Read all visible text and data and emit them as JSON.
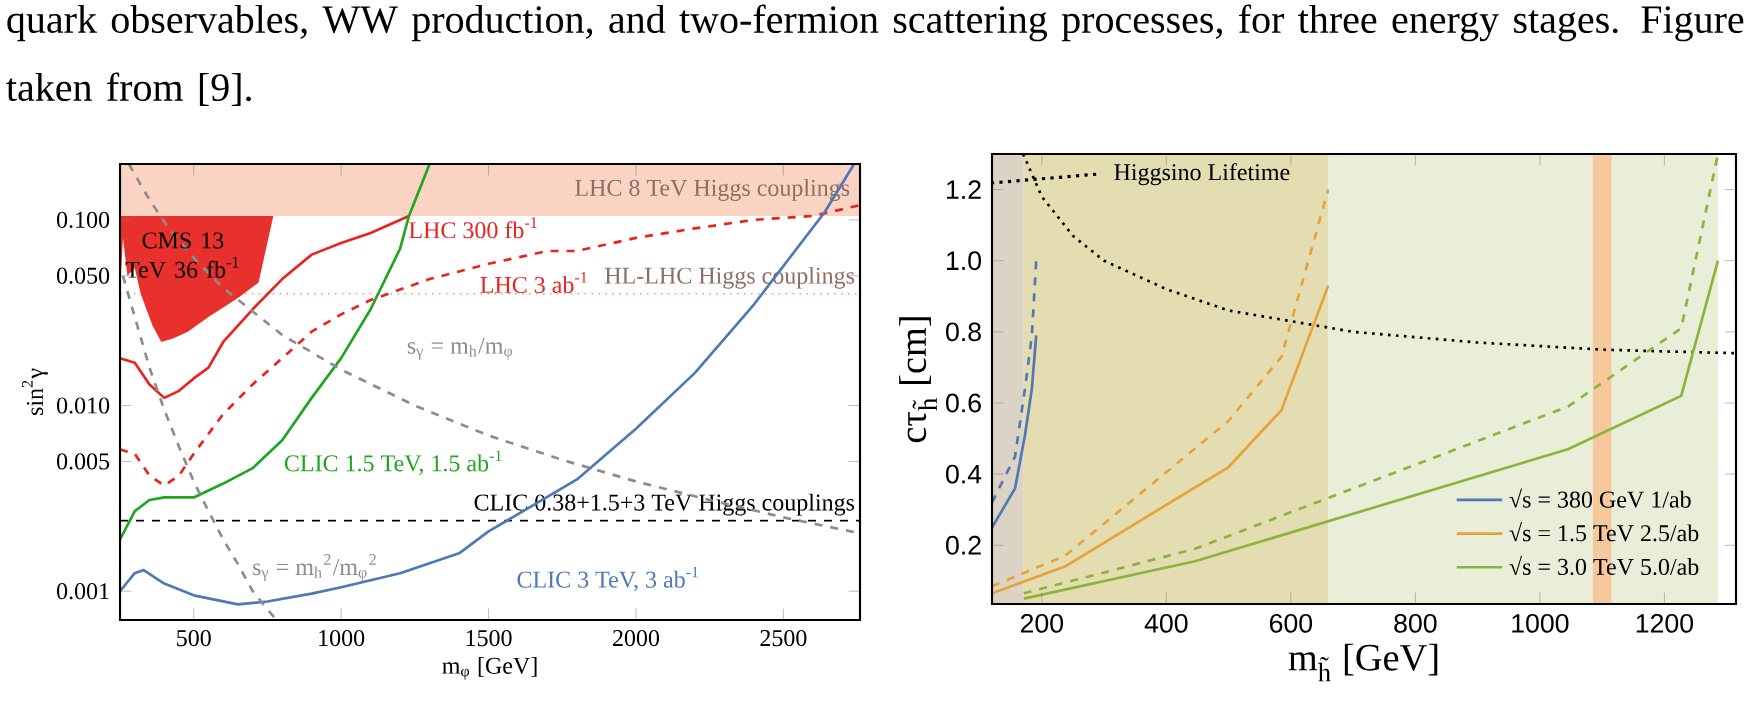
{
  "chart_data": [
    {
      "type": "line",
      "xlabel": "m$_{φ}$  [GeV]",
      "ylabel": "sin$^{2}$γ",
      "log": "y",
      "xlim": [
        250,
        2760
      ],
      "ylim": [
        0.0007,
        0.2
      ],
      "xticks": [
        500,
        1000,
        1500,
        2000,
        2500
      ],
      "yticks": [
        {
          "value": 0.001,
          "label": "0.001"
        },
        {
          "value": 0.005,
          "label": "0.005"
        },
        {
          "value": 0.01,
          "label": "0.010"
        },
        {
          "value": 0.05,
          "label": "0.050"
        },
        {
          "value": 0.1,
          "label": "0.100"
        }
      ],
      "annotations": [
        "quark observables, WW production, and two-fermion scattering processes, for three energy stages. Figure taken from [9]."
      ],
      "bands": [
        {
          "axis": "y",
          "from": 0.105,
          "to": 0.2,
          "label": "LHC 8 TeV Higgs couplings",
          "color": "#fbd3c3"
        }
      ],
      "ref_lines": [
        {
          "axis": "y",
          "value": 0.04,
          "label": "HL-LHC Higgs couplings",
          "color": "#f09a8a",
          "line_style": "dotted"
        },
        {
          "axis": "y",
          "value": 0.0024,
          "label": "CLIC 0.38+1.5+3 TeV Higgs couplings",
          "color": "#000000",
          "line_style": "dashed"
        }
      ],
      "series": [
        {
          "name": "LHC 300 fb$^{-1}$",
          "color": "#e8241c",
          "line_style": "solid",
          "x": [
            250,
            300,
            350,
            400,
            450,
            500,
            550,
            600,
            700,
            800,
            900,
            1000,
            1100,
            1230
          ],
          "values": [
            0.018,
            0.017,
            0.013,
            0.011,
            0.012,
            0.014,
            0.016,
            0.022,
            0.033,
            0.048,
            0.065,
            0.075,
            0.085,
            0.105
          ]
        },
        {
          "name": "LHC 3 ab$^{-1}$",
          "color": "#e8241c",
          "line_style": "dashed",
          "x": [
            250,
            300,
            350,
            400,
            450,
            500,
            600,
            700,
            800,
            900,
            1000,
            1100,
            1300,
            1500,
            1700,
            1800,
            2000,
            2200,
            2400,
            2600,
            2760
          ],
          "values": [
            0.0058,
            0.0055,
            0.0042,
            0.0037,
            0.0042,
            0.0055,
            0.009,
            0.013,
            0.018,
            0.025,
            0.031,
            0.037,
            0.048,
            0.058,
            0.068,
            0.068,
            0.08,
            0.09,
            0.1,
            0.105,
            0.12
          ]
        },
        {
          "name": "CLIC 1.5 TeV, 1.5 ab$^{-1}$",
          "color": "#1fa51f",
          "line_style": "solid",
          "x": [
            250,
            300,
            350,
            400,
            500,
            600,
            700,
            800,
            900,
            1000,
            1100,
            1200,
            1230,
            1300
          ],
          "values": [
            0.0019,
            0.0027,
            0.0031,
            0.0032,
            0.0032,
            0.0038,
            0.0046,
            0.0065,
            0.011,
            0.018,
            0.033,
            0.07,
            0.105,
            0.2
          ]
        },
        {
          "name": "CLIC 3 TeV, 3 ab$^{-1}$",
          "color": "#4f78b5",
          "line_style": "solid",
          "x": [
            250,
            300,
            330,
            400,
            500,
            650,
            750,
            900,
            1000,
            1200,
            1400,
            1500,
            1600,
            1800,
            2000,
            2200,
            2400,
            2640,
            2740
          ],
          "values": [
            0.001,
            0.00125,
            0.0013,
            0.0011,
            0.00095,
            0.00085,
            0.00088,
            0.00097,
            0.00105,
            0.00125,
            0.0016,
            0.0021,
            0.0026,
            0.004,
            0.0075,
            0.015,
            0.035,
            0.11,
            0.2
          ]
        },
        {
          "name": "s$_{γ}$ = m$_{h}$/m$_{φ}$",
          "color": "#8c8c8c",
          "line_style": "dashed",
          "x": [
            280,
            350,
            420,
            500,
            600,
            800,
            1000,
            1250,
            1500,
            1750,
            2000,
            2250,
            2500,
            2760
          ],
          "values": [
            0.2,
            0.128,
            0.088,
            0.0625,
            0.043,
            0.024,
            0.0156,
            0.01,
            0.0069,
            0.0051,
            0.0039,
            0.0031,
            0.0025,
            0.00205
          ]
        },
        {
          "name": "s$_{γ}$ = m$_{h}$$^{2}$/m$_{φ}$$^{2}$",
          "color": "#8c8c8c",
          "line_style": "dashed",
          "x": [
            260,
            300,
            350,
            400,
            450,
            500,
            550,
            600,
            650,
            700,
            780
          ],
          "values": [
            0.05,
            0.03,
            0.016,
            0.0095,
            0.006,
            0.0039,
            0.0027,
            0.0019,
            0.0014,
            0.001,
            0.0007
          ]
        },
        {
          "name": "CMS 13 TeV 36 fb$^{-1}$",
          "type": "area",
          "color": "#e8312d",
          "x": [
            250,
            250,
            260,
            275,
            300,
            320,
            360,
            390,
            430,
            480,
            550,
            650,
            720,
            770
          ],
          "values": [
            0.105,
            0.04,
            0.08,
            0.05,
            0.055,
            0.04,
            0.027,
            0.022,
            0.023,
            0.025,
            0.03,
            0.038,
            0.046,
            0.105
          ]
        }
      ]
    },
    {
      "type": "line",
      "xlabel": "m$_{h̃}$ [GeV]",
      "ylabel": "cτ$_{h̃}$ [cm]",
      "xlim": [
        120,
        1315
      ],
      "ylim": [
        0.035,
        1.3
      ],
      "legend": "bottom right",
      "xticks": [
        200,
        400,
        600,
        800,
        1000,
        1200
      ],
      "yticks": [
        0.2,
        0.4,
        0.6,
        0.8,
        {
          "value": 1,
          "label": "1.0"
        },
        1.2
      ],
      "bands": [
        {
          "axis": "x",
          "from": 120,
          "to": 171,
          "color": "#dcd3c4"
        },
        {
          "axis": "x",
          "from": 171,
          "to": 660,
          "color": "#e4ddb2"
        },
        {
          "axis": "x",
          "from": 660,
          "to": 1286,
          "color": "#e9eed8"
        },
        {
          "axis": "x",
          "from": 1085,
          "to": 1115,
          "color": "#f7c89c"
        }
      ],
      "series": [
        {
          "name": "Higgsino Lifetime",
          "color": "#000000",
          "line_style": "dotted",
          "x": [
            170,
            200,
            250,
            300,
            400,
            500,
            600,
            700,
            800,
            900,
            1000,
            1100,
            1200,
            1315
          ],
          "values": [
            1.3,
            1.18,
            1.07,
            1.0,
            0.92,
            0.86,
            0.83,
            0.8,
            0.785,
            0.77,
            0.76,
            0.75,
            0.745,
            0.74
          ]
        },
        {
          "name": "√s = 380 GeV 1/ab",
          "color": "#4f78b5",
          "line_style": "solid",
          "x": [
            120,
            157,
            173,
            184,
            191
          ],
          "values": [
            0.25,
            0.36,
            0.51,
            0.64,
            0.79
          ]
        },
        {
          "color": "#4f78b5",
          "line_style": "dashed",
          "x": [
            120,
            157,
            173,
            184,
            191
          ],
          "values": [
            0.32,
            0.45,
            0.64,
            0.79,
            1.0
          ]
        },
        {
          "name": "√s = 1.5 TeV 2.5/ab",
          "color": "#e8a23a",
          "line_style": "solid",
          "x": [
            120,
            237,
            500,
            585,
            660
          ],
          "values": [
            0.065,
            0.14,
            0.42,
            0.58,
            0.93
          ]
        },
        {
          "color": "#e8a23a",
          "line_style": "dashed",
          "x": [
            120,
            237,
            500,
            585,
            660
          ],
          "values": [
            0.085,
            0.17,
            0.55,
            0.73,
            1.2
          ]
        },
        {
          "name": "√s = 3.0 TeV 5.0/ab",
          "color": "#8cb43c",
          "line_style": "solid",
          "x": [
            171,
            446,
            1045,
            1227,
            1286
          ],
          "values": [
            0.05,
            0.155,
            0.47,
            0.62,
            1.0
          ]
        },
        {
          "color": "#8cb43c",
          "line_style": "dashed",
          "x": [
            171,
            446,
            1045,
            1227,
            1286
          ],
          "values": [
            0.065,
            0.19,
            0.59,
            0.81,
            1.3
          ]
        }
      ]
    }
  ]
}
